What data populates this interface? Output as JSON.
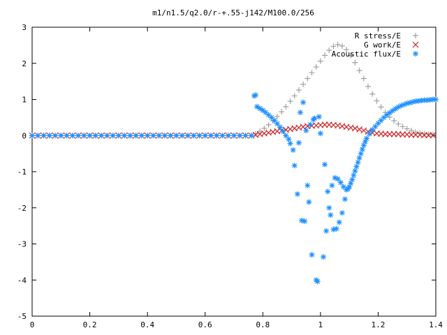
{
  "chart_data": {
    "type": "scatter",
    "title": "m1/n1.5/q2.0/r-+.55-j142/M100.0/256",
    "xlabel": "",
    "ylabel": "",
    "xlim": [
      0,
      1.4
    ],
    "ylim": [
      -5,
      3
    ],
    "x_ticks": [
      "0",
      "0.2",
      "0.4",
      "0.6",
      "0.8",
      "1",
      "1.2",
      "1.4"
    ],
    "y_ticks": [
      "3",
      "2",
      "1",
      "0",
      "-1",
      "-2",
      "-3",
      "-4",
      "-5"
    ],
    "grid": false,
    "legend_position": "top-right",
    "series": [
      {
        "name": "R stress/E",
        "color": "#a0a0a0",
        "marker": "plus",
        "points": [
          [
            0.0,
            0
          ],
          [
            0.02,
            0
          ],
          [
            0.04,
            0
          ],
          [
            0.06,
            0
          ],
          [
            0.08,
            0
          ],
          [
            0.1,
            0
          ],
          [
            0.12,
            0
          ],
          [
            0.14,
            0
          ],
          [
            0.16,
            0
          ],
          [
            0.18,
            0
          ],
          [
            0.2,
            0
          ],
          [
            0.22,
            0
          ],
          [
            0.24,
            0
          ],
          [
            0.26,
            0
          ],
          [
            0.28,
            0
          ],
          [
            0.3,
            0
          ],
          [
            0.32,
            0
          ],
          [
            0.34,
            0
          ],
          [
            0.36,
            0
          ],
          [
            0.38,
            0
          ],
          [
            0.4,
            0
          ],
          [
            0.42,
            0
          ],
          [
            0.44,
            0
          ],
          [
            0.46,
            0
          ],
          [
            0.48,
            0
          ],
          [
            0.5,
            0
          ],
          [
            0.52,
            0
          ],
          [
            0.54,
            0
          ],
          [
            0.56,
            0
          ],
          [
            0.58,
            0
          ],
          [
            0.6,
            0
          ],
          [
            0.62,
            0
          ],
          [
            0.64,
            0
          ],
          [
            0.66,
            0
          ],
          [
            0.68,
            0
          ],
          [
            0.7,
            0
          ],
          [
            0.72,
            0
          ],
          [
            0.74,
            0
          ],
          [
            0.76,
            0
          ],
          [
            0.775,
            0.05
          ],
          [
            0.79,
            0.12
          ],
          [
            0.805,
            0.2
          ],
          [
            0.82,
            0.3
          ],
          [
            0.835,
            0.41
          ],
          [
            0.85,
            0.53
          ],
          [
            0.865,
            0.66
          ],
          [
            0.88,
            0.8
          ],
          [
            0.895,
            0.95
          ],
          [
            0.91,
            1.1
          ],
          [
            0.925,
            1.26
          ],
          [
            0.94,
            1.42
          ],
          [
            0.955,
            1.58
          ],
          [
            0.97,
            1.74
          ],
          [
            0.985,
            1.9
          ],
          [
            1.0,
            2.06
          ],
          [
            1.015,
            2.22
          ],
          [
            1.03,
            2.36
          ],
          [
            1.045,
            2.47
          ],
          [
            1.06,
            2.52
          ],
          [
            1.075,
            2.48
          ],
          [
            1.09,
            2.38
          ],
          [
            1.105,
            2.22
          ],
          [
            1.12,
            2.02
          ],
          [
            1.135,
            1.8
          ],
          [
            1.15,
            1.58
          ],
          [
            1.165,
            1.36
          ],
          [
            1.18,
            1.15
          ],
          [
            1.195,
            0.96
          ],
          [
            1.21,
            0.79
          ],
          [
            1.225,
            0.64
          ],
          [
            1.24,
            0.51
          ],
          [
            1.255,
            0.41
          ],
          [
            1.27,
            0.32
          ],
          [
            1.285,
            0.25
          ],
          [
            1.3,
            0.19
          ],
          [
            1.315,
            0.14
          ],
          [
            1.33,
            0.1
          ],
          [
            1.345,
            0.07
          ],
          [
            1.36,
            0.05
          ],
          [
            1.375,
            0.04
          ],
          [
            1.39,
            0.03
          ]
        ]
      },
      {
        "name": "G work/E",
        "color": "#cc2222",
        "marker": "x",
        "points": [
          [
            0.0,
            0
          ],
          [
            0.02,
            0
          ],
          [
            0.04,
            0
          ],
          [
            0.06,
            0
          ],
          [
            0.08,
            0
          ],
          [
            0.1,
            0
          ],
          [
            0.12,
            0
          ],
          [
            0.14,
            0
          ],
          [
            0.16,
            0
          ],
          [
            0.18,
            0
          ],
          [
            0.2,
            0
          ],
          [
            0.22,
            0
          ],
          [
            0.24,
            0
          ],
          [
            0.26,
            0
          ],
          [
            0.28,
            0
          ],
          [
            0.3,
            0
          ],
          [
            0.32,
            0
          ],
          [
            0.34,
            0
          ],
          [
            0.36,
            0
          ],
          [
            0.38,
            0
          ],
          [
            0.4,
            0
          ],
          [
            0.42,
            0
          ],
          [
            0.44,
            0
          ],
          [
            0.46,
            0
          ],
          [
            0.48,
            0
          ],
          [
            0.5,
            0
          ],
          [
            0.52,
            0
          ],
          [
            0.54,
            0
          ],
          [
            0.56,
            0
          ],
          [
            0.58,
            0
          ],
          [
            0.6,
            0
          ],
          [
            0.62,
            0
          ],
          [
            0.64,
            0
          ],
          [
            0.66,
            0
          ],
          [
            0.68,
            0
          ],
          [
            0.7,
            0
          ],
          [
            0.72,
            0
          ],
          [
            0.74,
            0
          ],
          [
            0.76,
            0
          ],
          [
            0.775,
            0.02
          ],
          [
            0.79,
            0.04
          ],
          [
            0.805,
            0.06
          ],
          [
            0.82,
            0.08
          ],
          [
            0.835,
            0.1
          ],
          [
            0.85,
            0.12
          ],
          [
            0.865,
            0.14
          ],
          [
            0.88,
            0.16
          ],
          [
            0.895,
            0.18
          ],
          [
            0.91,
            0.2
          ],
          [
            0.925,
            0.22
          ],
          [
            0.94,
            0.24
          ],
          [
            0.955,
            0.26
          ],
          [
            0.97,
            0.27
          ],
          [
            0.985,
            0.28
          ],
          [
            1.0,
            0.29
          ],
          [
            1.015,
            0.3
          ],
          [
            1.03,
            0.3
          ],
          [
            1.045,
            0.29
          ],
          [
            1.06,
            0.28
          ],
          [
            1.075,
            0.26
          ],
          [
            1.09,
            0.24
          ],
          [
            1.105,
            0.22
          ],
          [
            1.12,
            0.2
          ],
          [
            1.135,
            0.17
          ],
          [
            1.15,
            0.14
          ],
          [
            1.165,
            0.11
          ],
          [
            1.18,
            0.08
          ],
          [
            1.195,
            0.06
          ],
          [
            1.21,
            0.05
          ],
          [
            1.225,
            0.04
          ],
          [
            1.24,
            0.04
          ],
          [
            1.255,
            0.04
          ],
          [
            1.27,
            0.04
          ],
          [
            1.285,
            0.03
          ],
          [
            1.3,
            0.03
          ],
          [
            1.315,
            0.02
          ],
          [
            1.33,
            0.02
          ],
          [
            1.345,
            0.02
          ],
          [
            1.36,
            0.01
          ],
          [
            1.375,
            0.01
          ],
          [
            1.39,
            0.01
          ]
        ]
      },
      {
        "name": "Acoustic flux/E",
        "color": "#1e90ff",
        "marker": "star",
        "points": [
          [
            0.0,
            0
          ],
          [
            0.02,
            0
          ],
          [
            0.04,
            0
          ],
          [
            0.06,
            0
          ],
          [
            0.08,
            0
          ],
          [
            0.1,
            0
          ],
          [
            0.12,
            0
          ],
          [
            0.14,
            0
          ],
          [
            0.16,
            0
          ],
          [
            0.18,
            0
          ],
          [
            0.2,
            0
          ],
          [
            0.22,
            0
          ],
          [
            0.24,
            0
          ],
          [
            0.26,
            0
          ],
          [
            0.28,
            0
          ],
          [
            0.3,
            0
          ],
          [
            0.32,
            0
          ],
          [
            0.34,
            0
          ],
          [
            0.36,
            0
          ],
          [
            0.38,
            0
          ],
          [
            0.4,
            0
          ],
          [
            0.42,
            0
          ],
          [
            0.44,
            0
          ],
          [
            0.46,
            0
          ],
          [
            0.48,
            0
          ],
          [
            0.5,
            0
          ],
          [
            0.52,
            0
          ],
          [
            0.54,
            0
          ],
          [
            0.56,
            0
          ],
          [
            0.58,
            0
          ],
          [
            0.6,
            0
          ],
          [
            0.62,
            0
          ],
          [
            0.64,
            0
          ],
          [
            0.66,
            0
          ],
          [
            0.68,
            0
          ],
          [
            0.7,
            0
          ],
          [
            0.72,
            0
          ],
          [
            0.74,
            0
          ],
          [
            0.76,
            0
          ],
          [
            0.77,
            1.1
          ],
          [
            0.775,
            1.12
          ],
          [
            0.78,
            0.8
          ],
          [
            0.79,
            0.75
          ],
          [
            0.8,
            0.7
          ],
          [
            0.81,
            0.64
          ],
          [
            0.82,
            0.57
          ],
          [
            0.83,
            0.5
          ],
          [
            0.84,
            0.42
          ],
          [
            0.85,
            0.33
          ],
          [
            0.86,
            0.23
          ],
          [
            0.87,
            0.12
          ],
          [
            0.88,
            0.0
          ],
          [
            0.89,
            -0.1
          ],
          [
            0.895,
            -0.22
          ],
          [
            0.905,
            -0.4
          ],
          [
            0.91,
            -0.83
          ],
          [
            0.92,
            -1.62
          ],
          [
            0.925,
            -0.2
          ],
          [
            0.93,
            0.64
          ],
          [
            0.935,
            -2.35
          ],
          [
            0.94,
            0.92
          ],
          [
            0.945,
            -2.37
          ],
          [
            0.95,
            0.14
          ],
          [
            0.955,
            -1.38
          ],
          [
            0.96,
            -1.84
          ],
          [
            0.965,
            0.3
          ],
          [
            0.97,
            -3.3
          ],
          [
            0.975,
            0.44
          ],
          [
            0.98,
            0.48
          ],
          [
            0.985,
            -4.0
          ],
          [
            0.99,
            -4.04
          ],
          [
            0.995,
            0.52
          ],
          [
            1.0,
            0.06
          ],
          [
            1.01,
            -3.36
          ],
          [
            1.015,
            -0.8
          ],
          [
            1.02,
            -2.64
          ],
          [
            1.025,
            -1.55
          ],
          [
            1.03,
            -2.0
          ],
          [
            1.035,
            -2.2
          ],
          [
            1.04,
            -1.38
          ],
          [
            1.045,
            -2.6
          ],
          [
            1.05,
            -1.17
          ],
          [
            1.055,
            -2.58
          ],
          [
            1.06,
            -1.2
          ],
          [
            1.065,
            -2.4
          ],
          [
            1.07,
            -1.3
          ],
          [
            1.075,
            -2.14
          ],
          [
            1.08,
            -1.42
          ],
          [
            1.085,
            -1.76
          ],
          [
            1.09,
            -1.5
          ],
          [
            1.095,
            -1.48
          ],
          [
            1.1,
            -1.42
          ],
          [
            1.105,
            -1.32
          ],
          [
            1.11,
            -1.22
          ],
          [
            1.115,
            -1.1
          ],
          [
            1.12,
            -0.98
          ],
          [
            1.125,
            -0.86
          ],
          [
            1.13,
            -0.74
          ],
          [
            1.135,
            -0.62
          ],
          [
            1.14,
            -0.5
          ],
          [
            1.145,
            -0.38
          ],
          [
            1.15,
            -0.27
          ],
          [
            1.155,
            -0.17
          ],
          [
            1.16,
            -0.08
          ],
          [
            1.17,
            0.05
          ],
          [
            1.18,
            0.16
          ],
          [
            1.19,
            0.25
          ],
          [
            1.2,
            0.34
          ],
          [
            1.21,
            0.42
          ],
          [
            1.22,
            0.5
          ],
          [
            1.23,
            0.57
          ],
          [
            1.24,
            0.63
          ],
          [
            1.25,
            0.69
          ],
          [
            1.26,
            0.74
          ],
          [
            1.27,
            0.79
          ],
          [
            1.28,
            0.83
          ],
          [
            1.29,
            0.86
          ],
          [
            1.3,
            0.89
          ],
          [
            1.31,
            0.91
          ],
          [
            1.32,
            0.93
          ],
          [
            1.33,
            0.95
          ],
          [
            1.34,
            0.96
          ],
          [
            1.35,
            0.97
          ],
          [
            1.36,
            0.98
          ],
          [
            1.37,
            0.98
          ],
          [
            1.38,
            0.99
          ],
          [
            1.39,
            1.0
          ],
          [
            1.4,
            1.0
          ]
        ]
      }
    ]
  }
}
